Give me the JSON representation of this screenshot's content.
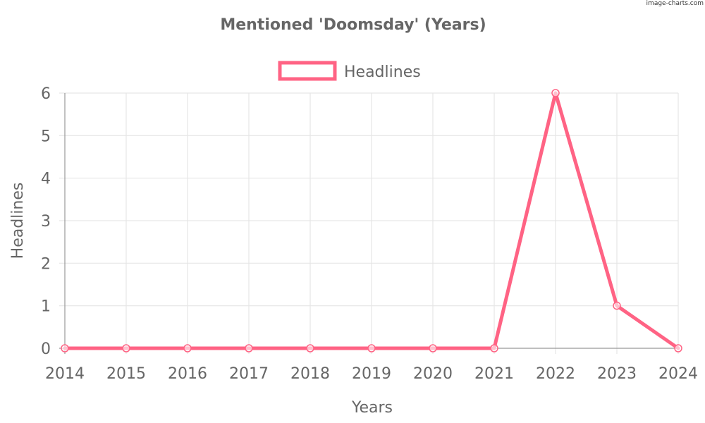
{
  "watermark": "image-charts.com",
  "colors": {
    "series": "#ff6384",
    "grid": "#e6e6e6",
    "axis": "#999999",
    "text": "#666666"
  },
  "chart_data": {
    "type": "line",
    "title": "Mentioned 'Doomsday' (Years)",
    "xlabel": "Years",
    "ylabel": "Headlines",
    "categories": [
      "2014",
      "2015",
      "2016",
      "2017",
      "2018",
      "2019",
      "2020",
      "2021",
      "2022",
      "2023",
      "2024"
    ],
    "series": [
      {
        "name": "Headlines",
        "values": [
          0,
          0,
          0,
          0,
          0,
          0,
          0,
          0,
          6,
          1,
          0
        ]
      }
    ],
    "ylim": [
      0,
      6
    ],
    "yticks": [
      "0",
      "1",
      "2",
      "3",
      "4",
      "5",
      "6"
    ],
    "grid": true,
    "legend_position": "top"
  }
}
